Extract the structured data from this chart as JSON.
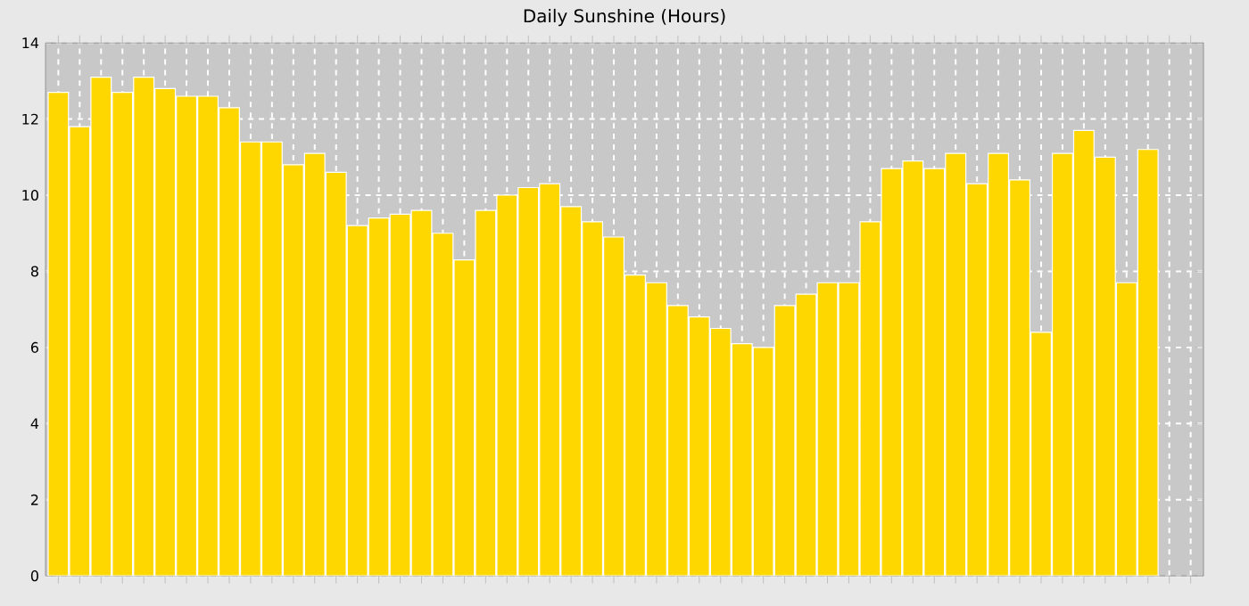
{
  "chart_data": {
    "type": "bar",
    "title": "Daily Sunshine (Hours)",
    "categories": [
      null,
      null,
      null,
      null,
      null,
      null,
      null,
      null,
      null,
      null,
      null,
      null,
      null,
      null,
      null,
      null,
      null,
      null,
      null,
      null,
      null,
      null,
      null,
      null,
      null,
      null,
      null,
      null,
      null,
      null,
      null,
      null,
      null,
      null,
      null,
      null,
      null,
      null,
      null,
      null,
      null,
      null,
      null,
      null,
      null,
      null,
      null,
      null,
      null,
      null,
      null,
      null,
      null,
      null
    ],
    "values": [
      12.7,
      11.8,
      13.1,
      12.7,
      13.1,
      12.8,
      12.6,
      12.6,
      12.3,
      11.4,
      11.4,
      10.8,
      11.1,
      10.6,
      9.2,
      9.4,
      9.5,
      9.6,
      9.0,
      8.3,
      9.6,
      10.0,
      10.2,
      10.3,
      9.7,
      9.3,
      8.9,
      7.9,
      7.7,
      7.1,
      6.8,
      6.5,
      6.1,
      6.0,
      7.1,
      7.4,
      7.7,
      7.7,
      9.3,
      10.7,
      10.9,
      10.7,
      11.1,
      10.3,
      11.1,
      10.4,
      6.4,
      11.1,
      11.7,
      11.0,
      7.7,
      11.2,
      null,
      null
    ],
    "color": "#ffd700",
    "ylim": [
      0,
      14
    ],
    "yticks": [
      0,
      2,
      4,
      6,
      8,
      10,
      12,
      14
    ],
    "grid": true
  }
}
